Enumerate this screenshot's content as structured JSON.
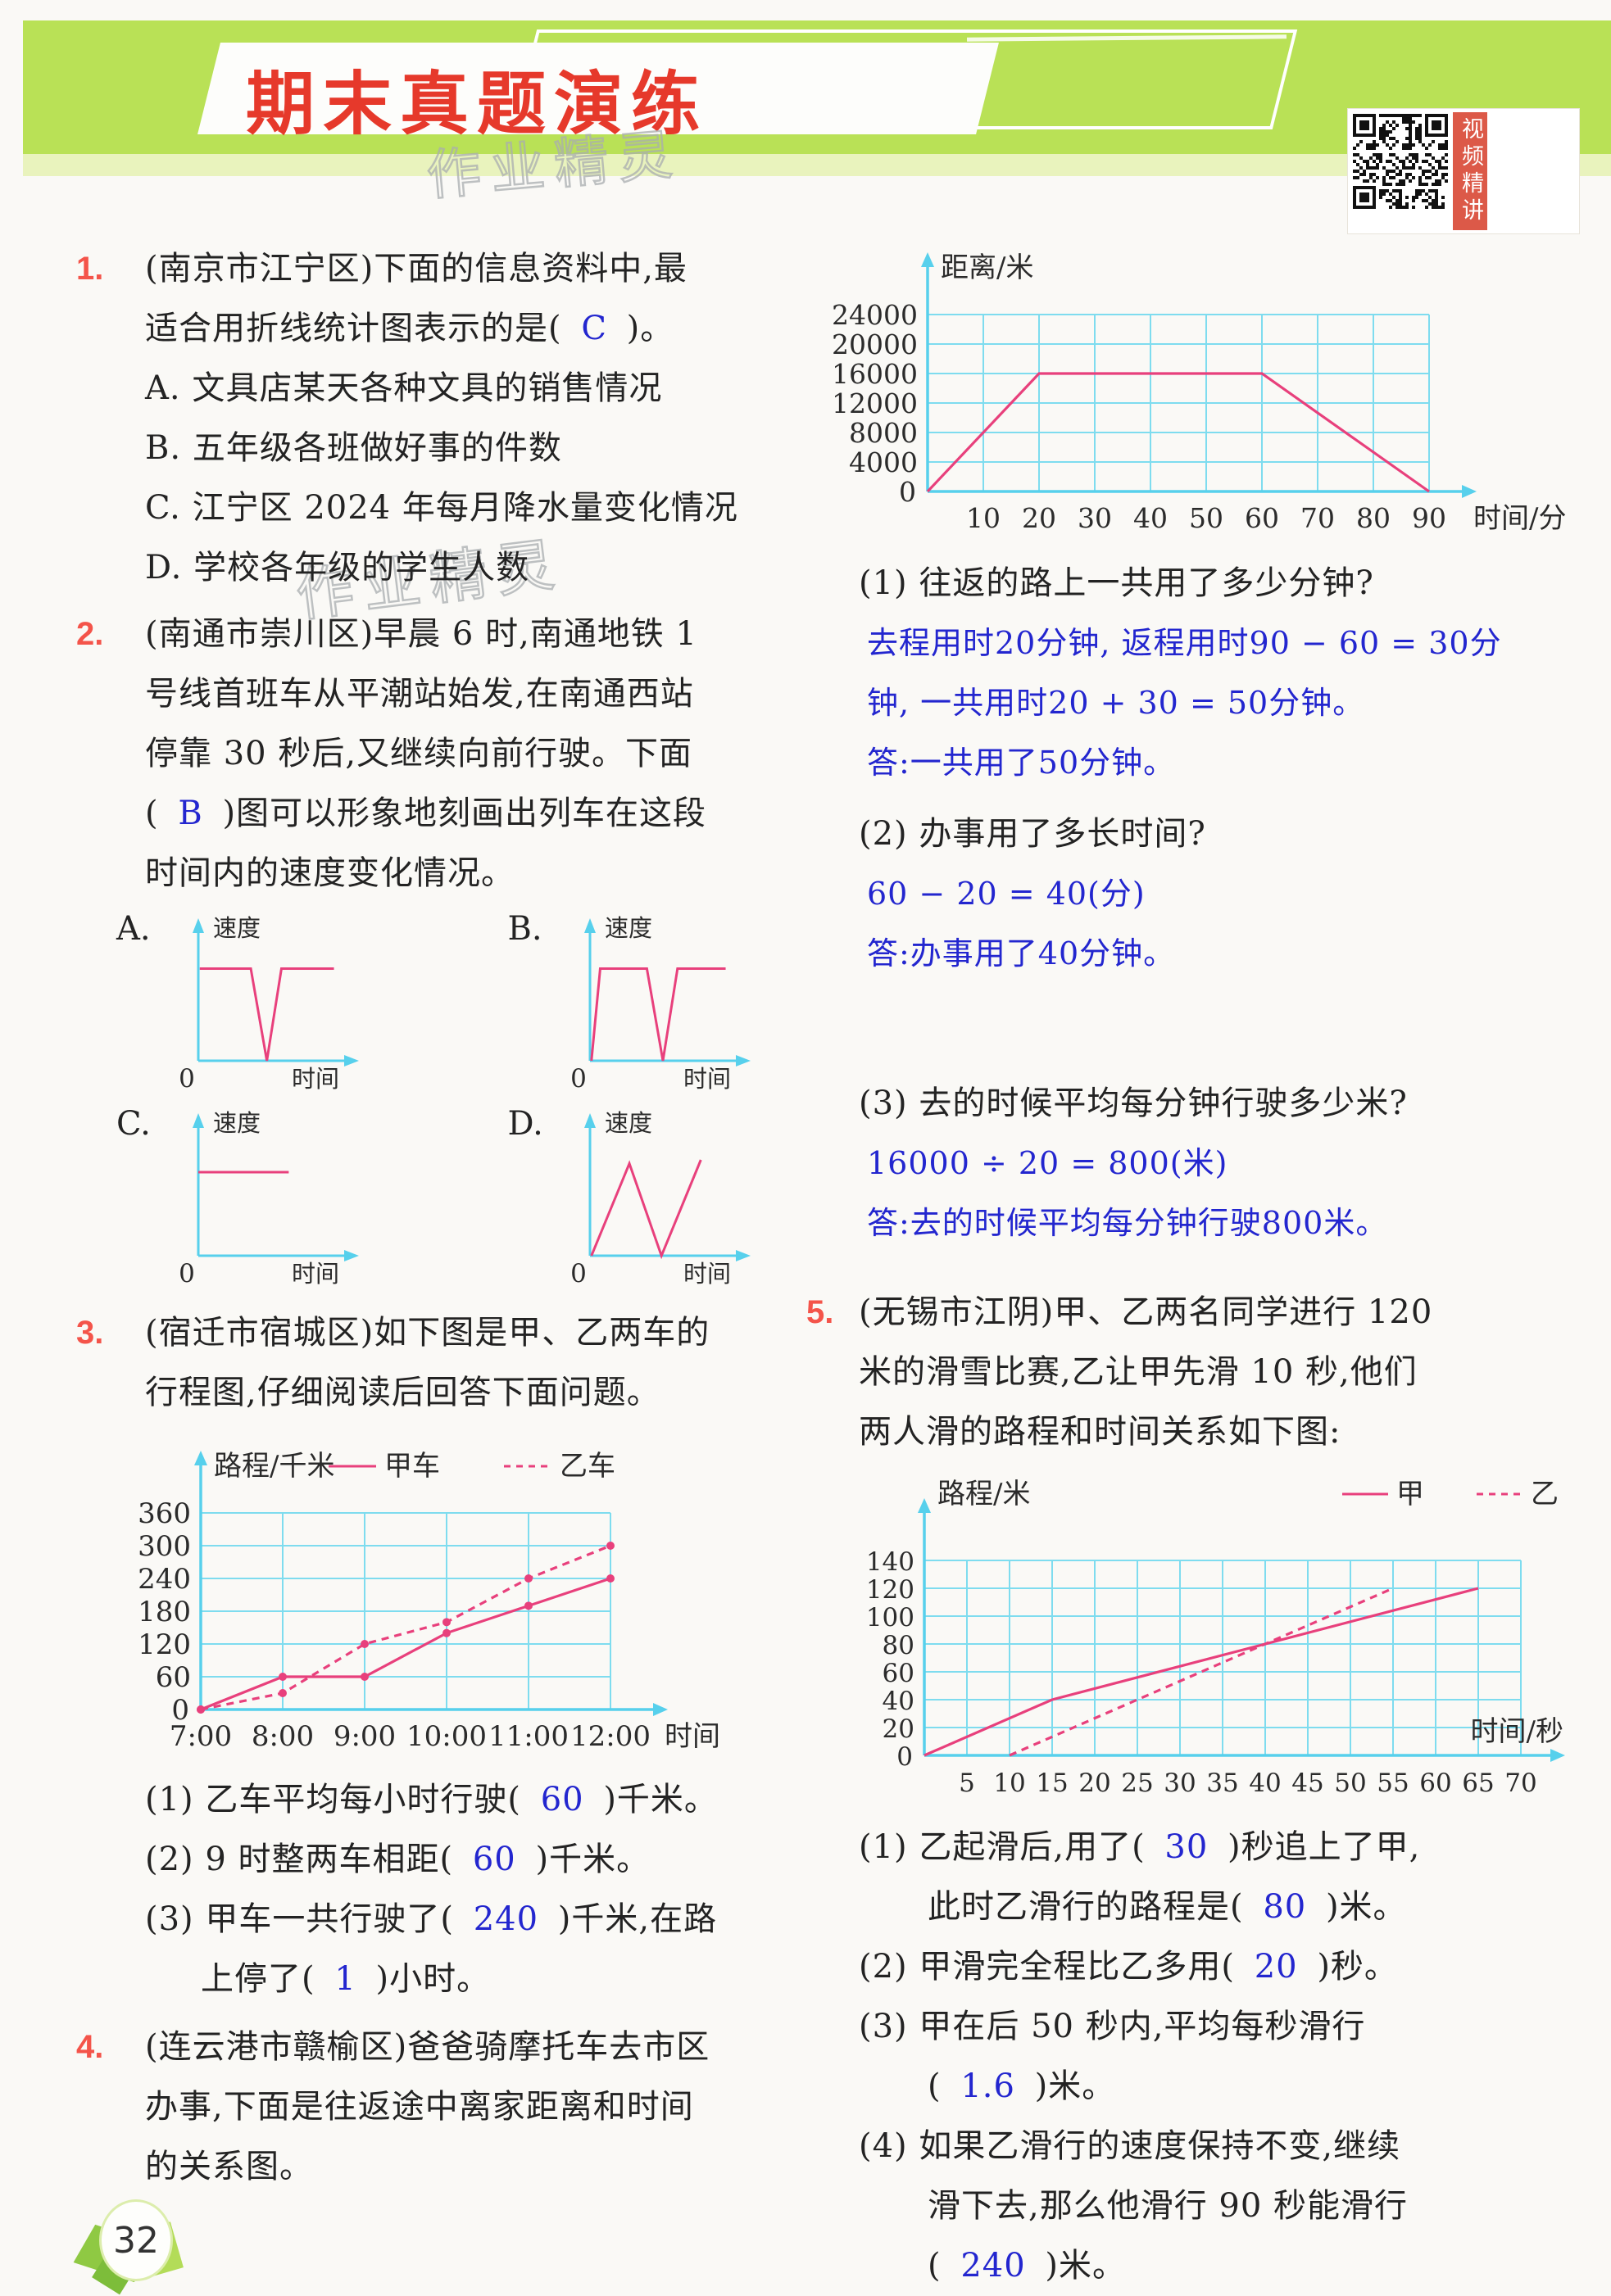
{
  "banner": {
    "title": "期末真题演练",
    "qr_label": "视频精讲"
  },
  "watermark": {
    "text": "作业精灵"
  },
  "page": {
    "number": "32"
  },
  "q1": {
    "num": "1.",
    "line1": "(南京市江宁区)下面的信息资料中,最",
    "line2_pre": "适合用折线统计图表示的是( ",
    "answer": "C",
    "line2_post": " )。",
    "optA": "A. 文具店某天各种文具的销售情况",
    "optB": "B. 五年级各班做好事的件数",
    "optC": "C. 江宁区 2024 年每月降水量变化情况",
    "optD": "D. 学校各年级的学生人数"
  },
  "q2": {
    "num": "2.",
    "line1": "(南通市崇川区)早晨 6 时,南通地铁 1",
    "line2": "号线首班车从平潮站始发,在南通西站",
    "line3": "停靠 30 秒后,又继续向前行驶。下面",
    "line4_pre": "( ",
    "answer": "B",
    "line4_post": " )图可以形象地刻画出列车在这段",
    "line5": "时间内的速度变化情况。"
  },
  "q3": {
    "num": "3.",
    "line1": "(宿迁市宿城区)如下图是甲、乙两车的",
    "line2": "行程图,仔细阅读后回答下面问题。",
    "sub1_pre": "(1) 乙车平均每小时行驶( ",
    "ans1": "60",
    "sub1_post": " )千米。",
    "sub2_pre": "(2) 9 时整两车相距( ",
    "ans2": "60",
    "sub2_post": " )千米。",
    "sub3_pre": "(3) 甲车一共行驶了( ",
    "ans3": "240",
    "sub3_post": " )千米,在路",
    "sub3b_pre": "上停了( ",
    "ans4": "1",
    "sub3b_post": " )小时。"
  },
  "q4": {
    "num": "4.",
    "line1": "(连云港市赣榆区)爸爸骑摩托车去市区",
    "line2": "办事,下面是往返途中离家距离和时间",
    "line3": "的关系图。",
    "sub1": "(1) 往返的路上一共用了多少分钟?",
    "a1_l1": "去程用时20分钟, 返程用时90 − 60 = 30分",
    "a1_l2": "钟, 一共用时20 + 30 = 50分钟。",
    "a1_l3": "答:一共用了50分钟。",
    "sub2": "(2) 办事用了多长时间?",
    "a2_l1": "60 − 20 = 40(分)",
    "a2_l2": "答:办事用了40分钟。",
    "sub3": "(3) 去的时候平均每分钟行驶多少米?",
    "a3_l1": "16000 ÷ 20 = 800(米)",
    "a3_l2": "答:去的时候平均每分钟行驶800米。"
  },
  "q5": {
    "num": "5.",
    "line1": "(无锡市江阴)甲、乙两名同学进行 120",
    "line2": "米的滑雪比赛,乙让甲先滑 10 秒,他们",
    "line3": "两人滑的路程和时间关系如下图:",
    "sub1_pre": "(1) 乙起滑后,用了( ",
    "ans1": "30",
    "sub1_post": " )秒追上了甲,",
    "sub1b_pre": "此时乙滑行的路程是( ",
    "ans2": "80",
    "sub1b_post": " )米。",
    "sub2_pre": "(2) 甲滑完全程比乙多用( ",
    "ans3": "20",
    "sub2_post": " )秒。",
    "sub3_l1": "(3) 甲在后 50 秒内,平均每秒滑行",
    "sub3b_pre": "( ",
    "ans4": "1.6",
    "sub3b_post": " )米。",
    "sub4_l1": "(4) 如果乙滑行的速度保持不变,继续",
    "sub4_l2": "滑下去,那么他滑行 90 秒能滑行",
    "sub4b_pre": "( ",
    "ans5": "240",
    "sub4b_post": " )米。"
  },
  "chart_data": [
    {
      "id": "q4-chart",
      "type": "line",
      "ylabel": "距离/米",
      "xlabel": "时间/分",
      "origin_label": "0",
      "ylim": [
        0,
        24000
      ],
      "xlim": [
        0,
        90
      ],
      "yticks": [
        4000,
        8000,
        12000,
        16000,
        20000,
        24000
      ],
      "xticks": [
        10,
        20,
        30,
        40,
        50,
        60,
        70,
        80,
        90
      ],
      "xmax": 90,
      "ymax": 24000,
      "grid": true,
      "legend_pos": "none",
      "series": [
        {
          "name": "离家距离",
          "style": "solid",
          "points": [
            [
              0,
              0
            ],
            [
              20,
              16000
            ],
            [
              60,
              16000
            ],
            [
              90,
              0
            ]
          ]
        }
      ]
    },
    {
      "id": "q3-chart",
      "type": "line",
      "ylabel": "路程/千米",
      "xlabel": "时间",
      "origin_label": "0",
      "xorigin_label": "7:00",
      "ylim": [
        0,
        360
      ],
      "xlim": [
        0,
        5
      ],
      "yticks": [
        60,
        120,
        180,
        240,
        300,
        360
      ],
      "xticks": [
        1,
        2,
        3,
        4,
        5
      ],
      "xtick_labels": [
        "8:00",
        "9:00",
        "10:00",
        "11:00",
        "12:00"
      ],
      "xmax": 5,
      "ymax": 360,
      "grid": true,
      "legend_pos": "top",
      "legend": [
        {
          "name": "甲车",
          "style": "solid"
        },
        {
          "name": "乙车",
          "style": "dashed"
        }
      ],
      "series": [
        {
          "name": "甲车",
          "style": "solid",
          "dots": true,
          "points": [
            [
              0,
              0
            ],
            [
              1,
              60
            ],
            [
              2,
              60
            ],
            [
              3,
              140
            ],
            [
              4,
              190
            ],
            [
              5,
              240
            ]
          ]
        },
        {
          "name": "乙车",
          "style": "dashed",
          "dots": true,
          "points": [
            [
              0,
              0
            ],
            [
              1,
              30
            ],
            [
              2,
              120
            ],
            [
              3,
              160
            ],
            [
              4,
              240
            ],
            [
              5,
              300
            ]
          ]
        }
      ]
    },
    {
      "id": "q5-chart",
      "type": "line",
      "ylabel": "路程/米",
      "xlabel": "时间/秒",
      "xlabel_pos": "above",
      "origin_label": "0",
      "ylim": [
        0,
        140
      ],
      "xlim": [
        0,
        70
      ],
      "yticks": [
        20,
        40,
        60,
        80,
        100,
        120,
        140
      ],
      "xticks": [
        5,
        10,
        15,
        20,
        25,
        30,
        35,
        40,
        45,
        50,
        55,
        60,
        65,
        70
      ],
      "xmax": 70,
      "ymax": 140,
      "grid": true,
      "legend_pos": "top",
      "legend": [
        {
          "name": "甲",
          "style": "solid"
        },
        {
          "name": "乙",
          "style": "dashed"
        }
      ],
      "series": [
        {
          "name": "甲",
          "style": "solid",
          "points": [
            [
              0,
              0
            ],
            [
              15,
              40
            ],
            [
              65,
              120
            ]
          ]
        },
        {
          "name": "乙",
          "style": "dashed",
          "points": [
            [
              10,
              0
            ],
            [
              55,
              120
            ]
          ]
        }
      ]
    },
    {
      "id": "graph-a",
      "type": "mini",
      "label": "A.",
      "ylabel": "速度",
      "xlabel": "时间",
      "origin_label": "0",
      "points": [
        [
          1,
          75
        ],
        [
          36,
          75
        ],
        [
          47,
          0
        ],
        [
          57,
          75
        ],
        [
          93,
          75
        ]
      ]
    },
    {
      "id": "graph-b",
      "type": "mini",
      "label": "B.",
      "ylabel": "速度",
      "xlabel": "时间",
      "origin_label": "0",
      "points": [
        [
          1,
          0
        ],
        [
          7,
          75
        ],
        [
          39,
          75
        ],
        [
          50,
          0
        ],
        [
          60,
          75
        ],
        [
          93,
          75
        ]
      ]
    },
    {
      "id": "graph-c",
      "type": "mini",
      "label": "C.",
      "ylabel": "速度",
      "xlabel": "时间",
      "origin_label": "0",
      "points": [
        [
          0,
          68
        ],
        [
          62,
          68
        ]
      ]
    },
    {
      "id": "graph-d",
      "type": "mini",
      "label": "D.",
      "ylabel": "速度",
      "xlabel": "时间",
      "origin_label": "0",
      "points": [
        [
          1,
          0
        ],
        [
          27,
          75
        ],
        [
          49,
          0
        ],
        [
          76,
          78
        ]
      ]
    }
  ]
}
